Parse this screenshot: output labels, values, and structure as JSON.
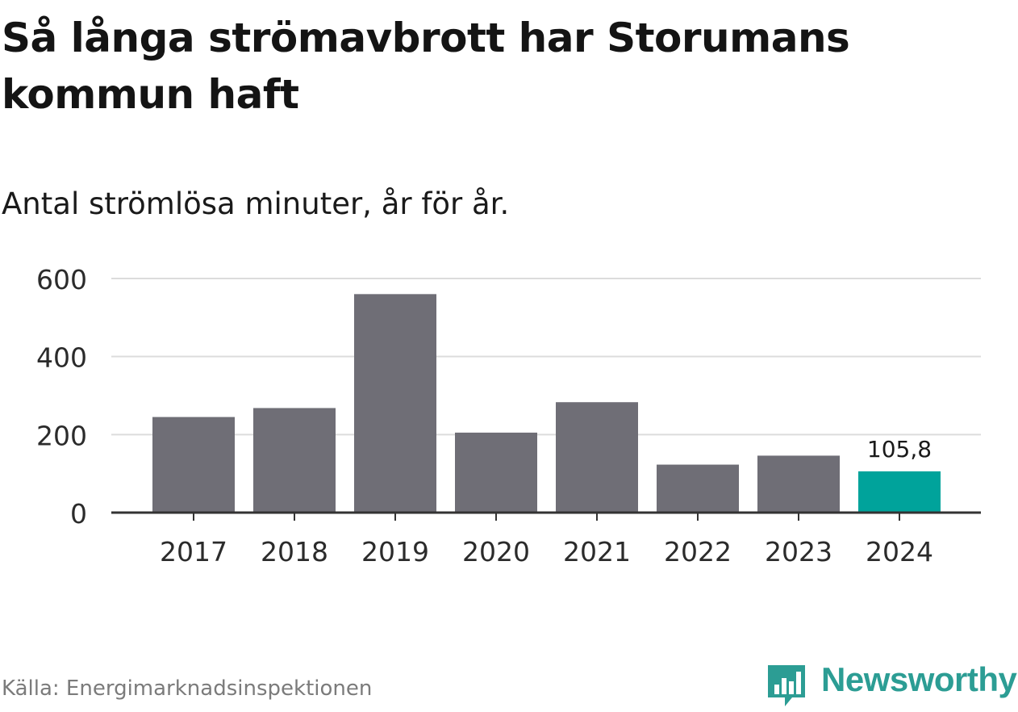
{
  "title": "Så långa strömavbrott har Storumans kommun haft",
  "subtitle": "Antal strömlösa minuter, år för år.",
  "source": "Källa: Energimarknadsinspektionen",
  "brand": {
    "name": "Newsworthy",
    "color": "#2c9d94",
    "icon": "bar-chart-speech-bubble-icon"
  },
  "colors": {
    "bar": "#6f6e76",
    "highlight": "#00a39b",
    "grid": "#dcdcdc",
    "axis": "#333333"
  },
  "chart_data": {
    "type": "bar",
    "title": "Så långa strömavbrott har Storumans kommun haft",
    "subtitle": "Antal strömlösa minuter, år för år.",
    "xlabel": "",
    "ylabel": "",
    "categories": [
      "2017",
      "2018",
      "2019",
      "2020",
      "2021",
      "2022",
      "2023",
      "2024"
    ],
    "values": [
      245,
      268,
      560,
      205,
      283,
      123,
      146,
      105.8
    ],
    "highlight_index": 7,
    "data_labels": [
      {
        "index": 7,
        "text": "105,8"
      }
    ],
    "ylim": [
      0,
      600
    ],
    "yticks": [
      0,
      200,
      400,
      600
    ],
    "grid": true
  }
}
